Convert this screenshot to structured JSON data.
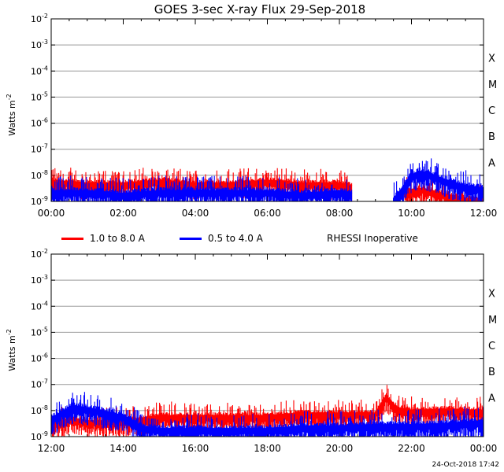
{
  "title": "GOES 3-sec X-ray Flux   29-Sep-2018",
  "legend": {
    "long": "1.0 to 8.0 A",
    "short": "0.5 to 4.0 A",
    "note": "RHESSI Inoperative"
  },
  "colors": {
    "long": "#ff0000",
    "short": "#0000ff",
    "grid": "#999999",
    "axis": "#000000"
  },
  "timestamp": "24-Oct-2018 17:42",
  "chart_data": [
    {
      "type": "line",
      "title": "GOES 3-sec X-ray Flux   29-Sep-2018",
      "ylabel": "Watts m^-2",
      "yscale": "log",
      "ylim": [
        1e-09,
        0.01
      ],
      "yticks": [
        -9,
        -8,
        -7,
        -6,
        -5,
        -4,
        -3,
        -2
      ],
      "flare_classes": [
        "A",
        "B",
        "C",
        "M",
        "X"
      ],
      "xlim_hours": [
        0,
        12
      ],
      "xticks": [
        "00:00",
        "02:00",
        "04:00",
        "06:00",
        "08:00",
        "10:00",
        "12:00"
      ],
      "series": [
        {
          "name": "1.0 to 8.0 A",
          "color": "#ff0000",
          "points": [
            [
              0,
              -8.2
            ],
            [
              1,
              -8.3
            ],
            [
              2,
              -8.3
            ],
            [
              3,
              -8.2
            ],
            [
              4,
              -8.3
            ],
            [
              5,
              -8.3
            ],
            [
              6,
              -8.2
            ],
            [
              7,
              -8.3
            ],
            [
              8,
              -8.3
            ],
            [
              8.35,
              -8.4
            ]
          ],
          "points2": [
            [
              9.8,
              -8.6
            ],
            [
              10.0,
              -8.55
            ],
            [
              10.3,
              -8.5
            ],
            [
              10.6,
              -8.6
            ],
            [
              10.9,
              -8.7
            ],
            [
              11.2,
              -8.8
            ],
            [
              11.6,
              -8.9
            ],
            [
              12,
              -8.9
            ]
          ]
        },
        {
          "name": "0.5 to 4.0 A",
          "color": "#0000ff",
          "points": [
            [
              0,
              -8.6
            ],
            [
              1,
              -8.6
            ],
            [
              2,
              -8.7
            ],
            [
              3,
              -8.6
            ],
            [
              4,
              -8.6
            ],
            [
              5,
              -8.6
            ],
            [
              6,
              -8.6
            ],
            [
              7,
              -8.7
            ],
            [
              8,
              -8.6
            ],
            [
              8.35,
              -8.7
            ]
          ],
          "points2": [
            [
              9.5,
              -8.9
            ],
            [
              9.75,
              -8.5
            ],
            [
              9.95,
              -8.05
            ],
            [
              10.2,
              -7.85
            ],
            [
              10.5,
              -7.92
            ],
            [
              10.8,
              -8.1
            ],
            [
              11.1,
              -8.25
            ],
            [
              11.5,
              -8.4
            ],
            [
              12,
              -8.5
            ]
          ]
        }
      ]
    },
    {
      "type": "line",
      "ylabel": "Watts m^-2",
      "yscale": "log",
      "ylim": [
        1e-09,
        0.01
      ],
      "yticks": [
        -9,
        -8,
        -7,
        -6,
        -5,
        -4,
        -3,
        -2
      ],
      "flare_classes": [
        "A",
        "B",
        "C",
        "M",
        "X"
      ],
      "xlim_hours": [
        12,
        24
      ],
      "xticks": [
        "12:00",
        "14:00",
        "16:00",
        "18:00",
        "20:00",
        "22:00",
        "00:00"
      ],
      "series": [
        {
          "name": "1.0 to 8.0 A",
          "color": "#ff0000",
          "points": [
            [
              12,
              -8.5
            ],
            [
              12.5,
              -8.3
            ],
            [
              13,
              -8.4
            ],
            [
              14,
              -8.4
            ],
            [
              15,
              -8.2
            ],
            [
              16,
              -8.2
            ],
            [
              17,
              -8.2
            ],
            [
              18,
              -8.2
            ],
            [
              19,
              -8.1
            ],
            [
              20,
              -8.1
            ],
            [
              21,
              -8.1
            ],
            [
              21.3,
              -7.45
            ],
            [
              21.6,
              -7.9
            ],
            [
              22,
              -8.0
            ],
            [
              23,
              -7.95
            ],
            [
              24,
              -8.0
            ]
          ]
        },
        {
          "name": "0.5 to 4.0 A",
          "color": "#0000ff",
          "points": [
            [
              12,
              -8.3
            ],
            [
              12.3,
              -8.05
            ],
            [
              12.6,
              -7.82
            ],
            [
              13,
              -7.9
            ],
            [
              13.4,
              -8.0
            ],
            [
              14,
              -8.2
            ],
            [
              14.5,
              -8.6
            ],
            [
              15,
              -8.7
            ],
            [
              16,
              -8.7
            ],
            [
              17,
              -8.7
            ],
            [
              18,
              -8.7
            ],
            [
              19,
              -8.6
            ],
            [
              20,
              -8.6
            ],
            [
              21,
              -8.55
            ],
            [
              22,
              -8.55
            ],
            [
              23,
              -8.5
            ],
            [
              24,
              -8.4
            ]
          ]
        }
      ]
    }
  ]
}
